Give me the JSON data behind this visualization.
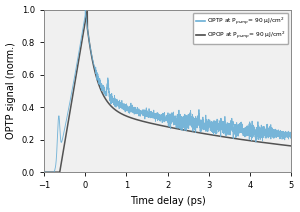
{
  "title": "",
  "xlabel": "Time delay (ps)",
  "ylabel": "OPTP signal (norm.)",
  "xlim": [
    -1,
    5
  ],
  "ylim": [
    0.0,
    1.0
  ],
  "xticks": [
    -1,
    0,
    1,
    2,
    3,
    4,
    5
  ],
  "yticks": [
    0.0,
    0.2,
    0.4,
    0.6,
    0.8,
    1.0
  ],
  "legend_optp": "OPTP at P$_{pump}$= 90 µJ/cm$^2$",
  "legend_opop": "OPOP at P$_{pump}$= 90 µJ/cm$^2$",
  "optp_color": "#6aafd6",
  "opop_color": "#4a4a4a",
  "background_color": "#f0f0f0",
  "fig_background": "#ffffff"
}
